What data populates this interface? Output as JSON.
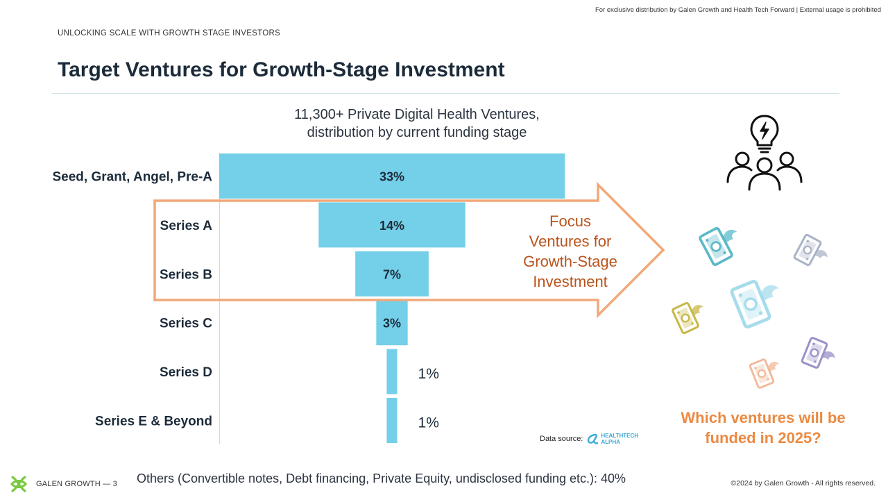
{
  "header": {
    "disclaimer": "For exclusive distribution by Galen Growth and Health Tech Forward | External usage is prohibited",
    "eyebrow": "UNLOCKING SCALE WITH GROWTH STAGE INVESTORS",
    "title": "Target Ventures for Growth-Stage Investment"
  },
  "chart_data": {
    "type": "bar",
    "orientation": "horizontal-funnel",
    "title_lines": [
      "11,300+ Private Digital Health Ventures,",
      "distribution by current funding stage"
    ],
    "categories": [
      "Seed, Grant, Angel, Pre-A",
      "Series A",
      "Series B",
      "Series C",
      "Series D",
      "Series E & Beyond"
    ],
    "values": [
      33,
      14,
      7,
      3,
      1,
      1
    ],
    "labels": [
      "33%",
      "14%",
      "7%",
      "3%",
      "1%",
      "1%"
    ],
    "unit": "%",
    "bar_color": "#74cfe8",
    "note": "Others (Convertible notes, Debt financing, Private Equity, undisclosed funding etc.): 40%"
  },
  "focus": {
    "lines": [
      "Focus",
      "Ventures for",
      "Growth-Stage",
      "Investment"
    ],
    "arrow_color": "#f2a878",
    "text_color": "#b9541c"
  },
  "question": {
    "lines": [
      "Which ventures will be",
      "funded in 2025?"
    ],
    "color": "#ec8a42"
  },
  "icons": {
    "idea": "lightbulb-people-icon",
    "money": [
      "flying-money-teal-icon",
      "flying-money-grey-icon",
      "flying-money-lightblue-icon",
      "flying-money-olive-icon",
      "flying-money-purple-icon",
      "flying-money-peach-icon"
    ],
    "money_colors": [
      "#5ab9c9",
      "#a9b4c6",
      "#a6dcec",
      "#c9b648",
      "#9a92c8",
      "#f2b898"
    ]
  },
  "source": {
    "label": "Data source:",
    "logo_line1": "HEALTHTECH",
    "logo_line2": "ALPHA"
  },
  "footer": {
    "brand": "GALEN GROWTH",
    "separator": "—",
    "page_number": "3",
    "copyright": "©2024 by Galen Growth  - All rights reserved."
  }
}
